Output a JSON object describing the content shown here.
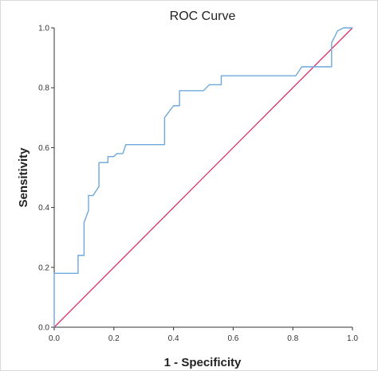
{
  "chart_data": {
    "type": "line",
    "title": "ROC Curve",
    "xlabel": "1 - Specificity",
    "ylabel": "Sensitivity",
    "xlim": [
      0.0,
      1.0
    ],
    "ylim": [
      0.0,
      1.0
    ],
    "grid": false,
    "x_ticks": [
      "0.0",
      "0.2",
      "0.4",
      "0.6",
      "0.8",
      "1.0"
    ],
    "y_ticks": [
      "0.0",
      "0.2",
      "0.4",
      "0.6",
      "0.8",
      "1.0"
    ],
    "colors": {
      "roc": "#6fa8dc",
      "reference": "#d6336c",
      "axis": "#333333"
    },
    "series": [
      {
        "values_xy": [
          [
            0.0,
            0.0
          ],
          [
            0.0,
            0.18
          ],
          [
            0.08,
            0.18
          ],
          [
            0.08,
            0.24
          ],
          [
            0.1,
            0.24
          ],
          [
            0.1,
            0.35
          ],
          [
            0.115,
            0.39
          ],
          [
            0.115,
            0.44
          ],
          [
            0.13,
            0.44
          ],
          [
            0.15,
            0.47
          ],
          [
            0.15,
            0.55
          ],
          [
            0.18,
            0.55
          ],
          [
            0.18,
            0.57
          ],
          [
            0.2,
            0.57
          ],
          [
            0.21,
            0.58
          ],
          [
            0.23,
            0.58
          ],
          [
            0.24,
            0.61
          ],
          [
            0.37,
            0.61
          ],
          [
            0.37,
            0.7
          ],
          [
            0.4,
            0.74
          ],
          [
            0.42,
            0.74
          ],
          [
            0.42,
            0.79
          ],
          [
            0.5,
            0.79
          ],
          [
            0.52,
            0.81
          ],
          [
            0.56,
            0.81
          ],
          [
            0.56,
            0.84
          ],
          [
            0.81,
            0.84
          ],
          [
            0.83,
            0.87
          ],
          [
            0.93,
            0.87
          ],
          [
            0.93,
            0.95
          ],
          [
            0.95,
            0.99
          ],
          [
            0.97,
            1.0
          ],
          [
            1.0,
            1.0
          ]
        ]
      },
      {
        "values_xy": [
          [
            0.0,
            0.0
          ],
          [
            1.0,
            1.0
          ]
        ]
      }
    ]
  }
}
